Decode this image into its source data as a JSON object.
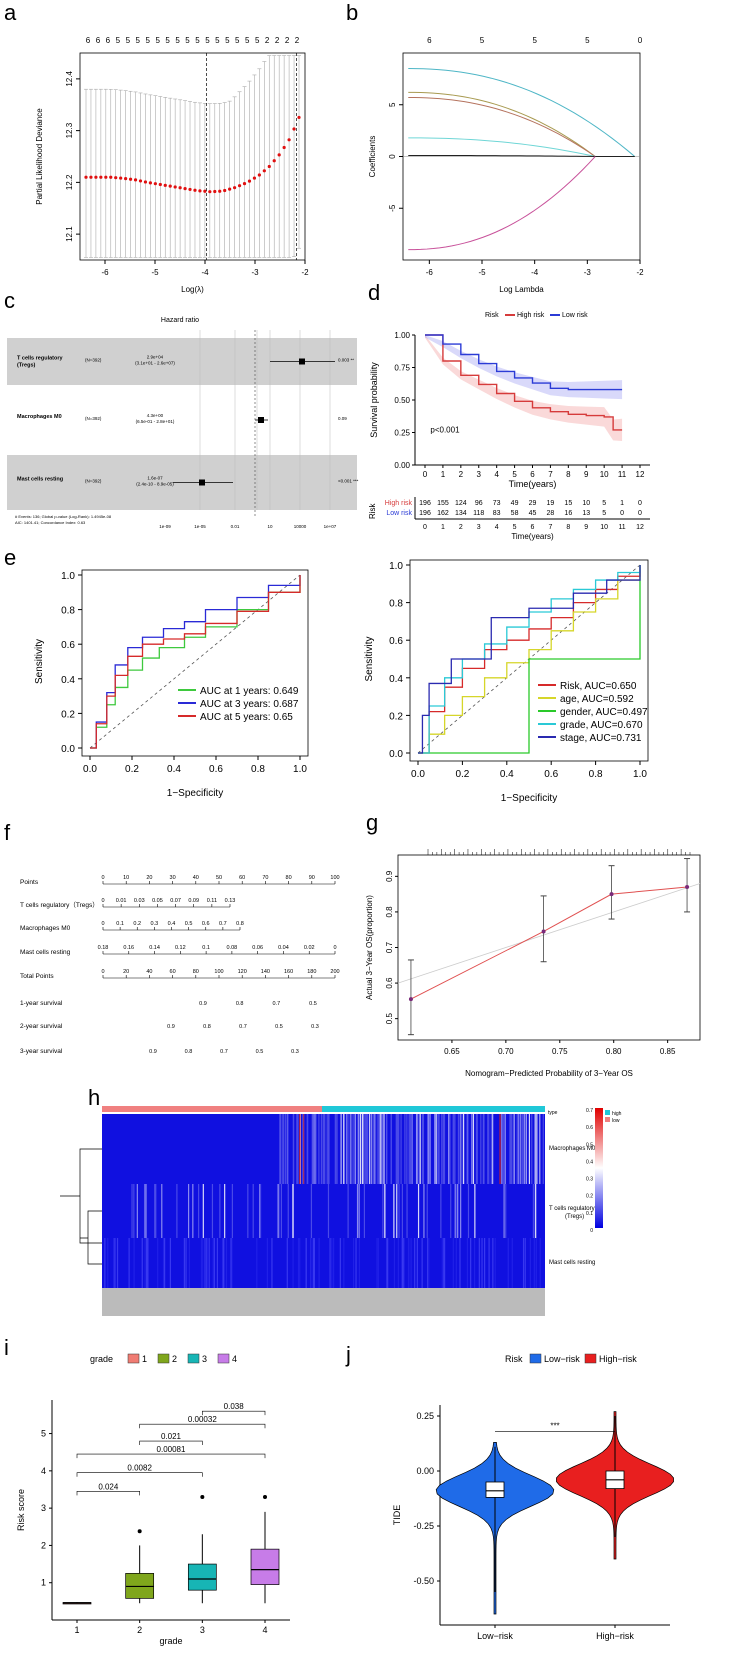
{
  "labels": {
    "a": "a",
    "b": "b",
    "c": "c",
    "d": "d",
    "e": "e",
    "f": "f",
    "g": "g",
    "h": "h",
    "i": "i",
    "j": "j"
  },
  "panel_a": {
    "type": "line",
    "xlabel": "Log(λ)",
    "ylabel": "Partial Likelihood Deviance",
    "top_ticks": [
      "6",
      "6",
      "6",
      "5",
      "5",
      "5",
      "5",
      "5",
      "5",
      "5",
      "5",
      "5",
      "5",
      "5",
      "5",
      "5",
      "5",
      "5",
      "2",
      "2",
      "2",
      "2"
    ],
    "x_ticks": [
      "-6",
      "-5",
      "-4",
      "-3",
      "-2"
    ],
    "y_ticks": [
      "12.1",
      "12.2",
      "12.3",
      "12.4"
    ],
    "x": [
      -6.4,
      -6.15,
      -5.9,
      -5.65,
      -5.4,
      -5.15,
      -4.9,
      -4.65,
      -4.4,
      -4.15,
      -3.9,
      -3.65,
      -3.4,
      -3.15,
      -2.9,
      -2.7,
      -2.5,
      -2.3,
      -2.1
    ],
    "y": [
      12.21,
      12.21,
      12.21,
      12.208,
      12.205,
      12.2,
      12.196,
      12.192,
      12.188,
      12.184,
      12.182,
      12.183,
      12.19,
      12.2,
      12.215,
      12.232,
      12.255,
      12.285,
      12.33
    ],
    "vlines": [
      -3.97,
      -2.17
    ],
    "ylim": [
      12.05,
      12.45
    ],
    "xlim": [
      -6.5,
      -2.0
    ]
  },
  "panel_b": {
    "type": "line",
    "xlabel": "Log Lambda",
    "ylabel": "Coefficients",
    "top_ticks": [
      "6",
      "5",
      "5",
      "5",
      "0"
    ],
    "x_ticks": [
      "-6",
      "-5",
      "-4",
      "-3",
      "-2"
    ],
    "y_ticks": [
      "-5",
      "0",
      "5"
    ],
    "series": [
      {
        "name": "cyan-top",
        "color": "#4eb6c6",
        "start": 8.5,
        "end": 0
      },
      {
        "name": "olive",
        "color": "#a89a50",
        "start": 6.2,
        "end": 0
      },
      {
        "name": "brown",
        "color": "#b5735e",
        "start": 5.7,
        "end": 0
      },
      {
        "name": "light-cyan",
        "color": "#6fd6d6",
        "start": 1.8,
        "end": 0
      },
      {
        "name": "black",
        "color": "#222222",
        "start": 0.1,
        "end": 0
      },
      {
        "name": "magenta",
        "color": "#c8519a",
        "start": -9.0,
        "end": 0
      }
    ],
    "xlim": [
      -6.5,
      -2.0
    ],
    "ylim": [
      -10,
      10
    ]
  },
  "panel_c": {
    "title": "Hazard ratio",
    "rows": [
      {
        "name": "T cells regulatory (Tregs)",
        "n": "(N=392)",
        "hr": "2.9e+04",
        "ci": "(3.1e+01 - 2.6e+07)",
        "p": "0.003 **"
      },
      {
        "name": "Macrophages M0",
        "n": "(N=392)",
        "hr": "4.3e+00",
        "ci": "(6.5e-01 - 2.8e+01)",
        "p": "0.09"
      },
      {
        "name": "Mast cells resting",
        "n": "(N=392)",
        "hr": "1.6e-07",
        "ci": "(2.4e-10 - 8.9e-05)",
        "p": "<0.001 ***"
      }
    ],
    "axis_ticks": [
      "1e-09",
      "1e-05",
      "0.01",
      "10",
      "10000",
      "1e+07"
    ],
    "footer1": "# Events: 136; Global p-value (Log-Rank): 1.4945e-08",
    "footer2": "AIC: 1401.41; Concordance Index: 0.63"
  },
  "panel_d": {
    "legend_title": "Risk",
    "legend": [
      "High risk",
      "Low risk"
    ],
    "ylabel": "Survival probability",
    "xlabel": "Time(years)",
    "pvalue": "p<0.001",
    "y_ticks": [
      "0.00",
      "0.25",
      "0.50",
      "0.75",
      "1.00"
    ],
    "x_ticks": [
      "0",
      "1",
      "2",
      "3",
      "4",
      "5",
      "6",
      "7",
      "8",
      "9",
      "10",
      "11",
      "12"
    ],
    "high_t": [
      0,
      1,
      2,
      3,
      4,
      5,
      6,
      7,
      8,
      9,
      10,
      10.5,
      11
    ],
    "high_s": [
      1.0,
      0.8,
      0.69,
      0.62,
      0.55,
      0.49,
      0.44,
      0.41,
      0.39,
      0.38,
      0.37,
      0.27,
      0.27
    ],
    "low_t": [
      0,
      1,
      2,
      3,
      4,
      5,
      6,
      7,
      8,
      9,
      10,
      11
    ],
    "low_s": [
      1.0,
      0.93,
      0.85,
      0.78,
      0.72,
      0.67,
      0.63,
      0.59,
      0.58,
      0.58,
      0.58,
      0.58
    ],
    "risk_label": "Risk",
    "risk_rows": [
      {
        "name": "High risk",
        "color": "#d63b3b",
        "values": [
          "196",
          "155",
          "124",
          "96",
          "73",
          "49",
          "29",
          "19",
          "15",
          "10",
          "5",
          "1",
          "0"
        ]
      },
      {
        "name": "Low risk",
        "color": "#2b3bd6",
        "values": [
          "196",
          "162",
          "134",
          "118",
          "83",
          "58",
          "45",
          "28",
          "16",
          "13",
          "5",
          "0",
          "0"
        ]
      }
    ],
    "risk_xlabel": "Time(years)"
  },
  "panel_e1": {
    "type": "line",
    "xlabel": "1−Specificity",
    "ylabel": "Sensitivity",
    "ticks": [
      "0.0",
      "0.2",
      "0.4",
      "0.6",
      "0.8",
      "1.0"
    ],
    "legend": [
      "AUC at 1 years: 0.649",
      "AUC at 3 years: 0.687",
      "AUC at 5 years: 0.65"
    ],
    "colors": [
      "#3ec93e",
      "#2a2ad6",
      "#d62a2a"
    ],
    "curves": [
      [
        [
          0,
          0
        ],
        [
          0.03,
          0.12
        ],
        [
          0.08,
          0.25
        ],
        [
          0.12,
          0.35
        ],
        [
          0.18,
          0.45
        ],
        [
          0.25,
          0.52
        ],
        [
          0.33,
          0.58
        ],
        [
          0.45,
          0.64
        ],
        [
          0.55,
          0.7
        ],
        [
          0.7,
          0.8
        ],
        [
          0.85,
          0.9
        ],
        [
          1,
          1
        ]
      ],
      [
        [
          0,
          0
        ],
        [
          0.03,
          0.15
        ],
        [
          0.08,
          0.32
        ],
        [
          0.12,
          0.48
        ],
        [
          0.18,
          0.58
        ],
        [
          0.25,
          0.64
        ],
        [
          0.35,
          0.69
        ],
        [
          0.45,
          0.73
        ],
        [
          0.55,
          0.8
        ],
        [
          0.7,
          0.87
        ],
        [
          0.85,
          0.94
        ],
        [
          1,
          1
        ]
      ],
      [
        [
          0,
          0
        ],
        [
          0.03,
          0.14
        ],
        [
          0.08,
          0.3
        ],
        [
          0.12,
          0.42
        ],
        [
          0.18,
          0.53
        ],
        [
          0.25,
          0.6
        ],
        [
          0.35,
          0.63
        ],
        [
          0.45,
          0.66
        ],
        [
          0.55,
          0.72
        ],
        [
          0.7,
          0.79
        ],
        [
          0.85,
          0.9
        ],
        [
          1,
          1
        ]
      ]
    ]
  },
  "panel_e2": {
    "type": "line",
    "xlabel": "1−Specificity",
    "ylabel": "Sensitivity",
    "ticks": [
      "0.0",
      "0.2",
      "0.4",
      "0.6",
      "0.8",
      "1.0"
    ],
    "legend": [
      "Risk, AUC=0.650",
      "age, AUC=0.592",
      "gender, AUC=0.497",
      "grade, AUC=0.670",
      "stage, AUC=0.731"
    ],
    "colors": [
      "#d62a2a",
      "#d6d62a",
      "#2ac92a",
      "#2ac9d6",
      "#2a2ab0"
    ],
    "curves": [
      [
        [
          0,
          0
        ],
        [
          0.05,
          0.22
        ],
        [
          0.12,
          0.35
        ],
        [
          0.2,
          0.45
        ],
        [
          0.3,
          0.55
        ],
        [
          0.4,
          0.6
        ],
        [
          0.5,
          0.66
        ],
        [
          0.6,
          0.72
        ],
        [
          0.7,
          0.8
        ],
        [
          0.8,
          0.87
        ],
        [
          0.9,
          0.94
        ],
        [
          1,
          1
        ]
      ],
      [
        [
          0,
          0
        ],
        [
          0.05,
          0.1
        ],
        [
          0.12,
          0.2
        ],
        [
          0.2,
          0.3
        ],
        [
          0.3,
          0.4
        ],
        [
          0.4,
          0.48
        ],
        [
          0.5,
          0.55
        ],
        [
          0.6,
          0.65
        ],
        [
          0.7,
          0.75
        ],
        [
          0.8,
          0.82
        ],
        [
          0.9,
          0.92
        ],
        [
          1,
          1
        ]
      ],
      [
        [
          0,
          0
        ],
        [
          0.5,
          0.5
        ],
        [
          1,
          1
        ]
      ],
      [
        [
          0,
          0
        ],
        [
          0.05,
          0.25
        ],
        [
          0.12,
          0.4
        ],
        [
          0.2,
          0.5
        ],
        [
          0.3,
          0.58
        ],
        [
          0.4,
          0.67
        ],
        [
          0.5,
          0.75
        ],
        [
          0.6,
          0.82
        ],
        [
          0.7,
          0.87
        ],
        [
          0.8,
          0.92
        ],
        [
          0.9,
          0.96
        ],
        [
          1,
          1
        ]
      ],
      [
        [
          0,
          0
        ],
        [
          0.02,
          0.2
        ],
        [
          0.05,
          0.37
        ],
        [
          0.15,
          0.5
        ],
        [
          0.33,
          0.72
        ],
        [
          0.5,
          0.77
        ],
        [
          0.7,
          0.85
        ],
        [
          0.85,
          0.92
        ],
        [
          1,
          1
        ]
      ]
    ]
  },
  "panel_f": {
    "rows": [
      {
        "label": "Points",
        "ticks": [
          "0",
          "10",
          "20",
          "30",
          "40",
          "50",
          "60",
          "70",
          "80",
          "90",
          "100"
        ]
      },
      {
        "label": "T cells regulatory（Tregs）",
        "ticks": [
          "0",
          "0.01",
          "0.03",
          "0.05",
          "0.07",
          "0.09",
          "0.11",
          "0.13"
        ]
      },
      {
        "label": "Macrophages M0",
        "ticks": [
          "0",
          "0.1",
          "0.2",
          "0.3",
          "0.4",
          "0.5",
          "0.6",
          "0.7",
          "0.8"
        ]
      },
      {
        "label": "Mast cells resting",
        "ticks": [
          "0.18",
          "0.16",
          "0.14",
          "0.12",
          "0.1",
          "0.08",
          "0.06",
          "0.04",
          "0.02",
          "0"
        ]
      },
      {
        "label": "Total Points",
        "ticks": [
          "0",
          "20",
          "40",
          "60",
          "80",
          "100",
          "120",
          "140",
          "160",
          "180",
          "200"
        ]
      },
      {
        "label": "1-year survival",
        "ticks": [
          "0.9",
          "0.8",
          "0.7",
          "0.5"
        ]
      },
      {
        "label": "2-year survival",
        "ticks": [
          "0.9",
          "0.8",
          "0.7",
          "0.5",
          "0.3"
        ]
      },
      {
        "label": "3-year survival",
        "ticks": [
          "0.9",
          "0.8",
          "0.7",
          "0.5",
          "0.3"
        ]
      }
    ]
  },
  "panel_g": {
    "type": "line",
    "xlabel": "Nomogram−Predicted Probability of 3−Year OS",
    "ylabel": "Actual 3−Year OS(proportion)",
    "x_ticks": [
      "0.65",
      "0.70",
      "0.75",
      "0.80",
      "0.85"
    ],
    "y_ticks": [
      "0.5",
      "0.6",
      "0.7",
      "0.8",
      "0.9"
    ],
    "points": [
      [
        0.612,
        0.555
      ],
      [
        0.735,
        0.745
      ],
      [
        0.798,
        0.85
      ],
      [
        0.868,
        0.87
      ]
    ],
    "err": [
      [
        0.455,
        0.665
      ],
      [
        0.66,
        0.845
      ],
      [
        0.78,
        0.93
      ],
      [
        0.8,
        0.95
      ]
    ],
    "xlim": [
      0.6,
      0.88
    ],
    "ylim": [
      0.44,
      0.96
    ]
  },
  "panel_h": {
    "type": "heatmap",
    "rows": [
      "Macrophages M0",
      "T cells regulatory\n(Tregs)",
      "Mast cells resting"
    ],
    "legend_title": "type",
    "legend_items": [
      "high",
      "low"
    ],
    "scale_ticks": [
      "0.7",
      "0.6",
      "0.5",
      "0.4",
      "0.3",
      "0.2",
      "0.1",
      "0"
    ]
  },
  "panel_i": {
    "type": "box",
    "legend_title": "grade",
    "legend": [
      "1",
      "2",
      "3",
      "4"
    ],
    "colors": [
      "#f07c73",
      "#7fa61c",
      "#17b5b5",
      "#c77ce8"
    ],
    "xlabel": "grade",
    "ylabel": "Risk score",
    "x_ticks": [
      "1",
      "2",
      "3",
      "4"
    ],
    "y_ticks": [
      "1",
      "2",
      "3",
      "4",
      "5"
    ],
    "boxes": [
      {
        "min": 0.44,
        "q1": 0.45,
        "med": 0.46,
        "q3": 0.47,
        "max": 0.48,
        "out": []
      },
      {
        "min": 0.45,
        "q1": 0.58,
        "med": 0.9,
        "q3": 1.25,
        "max": 2.0,
        "out": [
          2.38
        ]
      },
      {
        "min": 0.45,
        "q1": 0.8,
        "med": 1.1,
        "q3": 1.5,
        "max": 2.3,
        "out": [
          3.3
        ]
      },
      {
        "min": 0.45,
        "q1": 0.95,
        "med": 1.35,
        "q3": 1.9,
        "max": 2.9,
        "out": [
          3.3
        ]
      }
    ],
    "brackets": [
      {
        "a": 1,
        "b": 2,
        "y": 3.45,
        "label": "0.024"
      },
      {
        "a": 1,
        "b": 3,
        "y": 3.95,
        "label": "0.0082"
      },
      {
        "a": 1,
        "b": 4,
        "y": 4.45,
        "label": "0.00081"
      },
      {
        "a": 2,
        "b": 3,
        "y": 4.8,
        "label": "0.021"
      },
      {
        "a": 2,
        "b": 4,
        "y": 5.25,
        "label": "0.00032"
      },
      {
        "a": 3,
        "b": 4,
        "y": 5.6,
        "label": "0.038"
      }
    ],
    "ylim": [
      0,
      5.9
    ]
  },
  "panel_j": {
    "type": "violin",
    "legend_title": "Risk",
    "legend": [
      "Low−risk",
      "High−risk"
    ],
    "colors": [
      "#1f6be8",
      "#e81f1f"
    ],
    "xlabel": "",
    "ylabel": "TIDE",
    "x_ticks": [
      "Low−risk",
      "High−risk"
    ],
    "y_ticks": [
      "0.25",
      "0.00",
      "-0.25",
      "-0.50"
    ],
    "signif": "***",
    "boxes": [
      {
        "min": -0.65,
        "q1": -0.12,
        "med": -0.09,
        "q3": -0.05,
        "max": 0.13
      },
      {
        "min": -0.4,
        "q1": -0.08,
        "med": -0.04,
        "q3": 0.0,
        "max": 0.27
      }
    ],
    "ylim": [
      -0.7,
      0.3
    ]
  }
}
